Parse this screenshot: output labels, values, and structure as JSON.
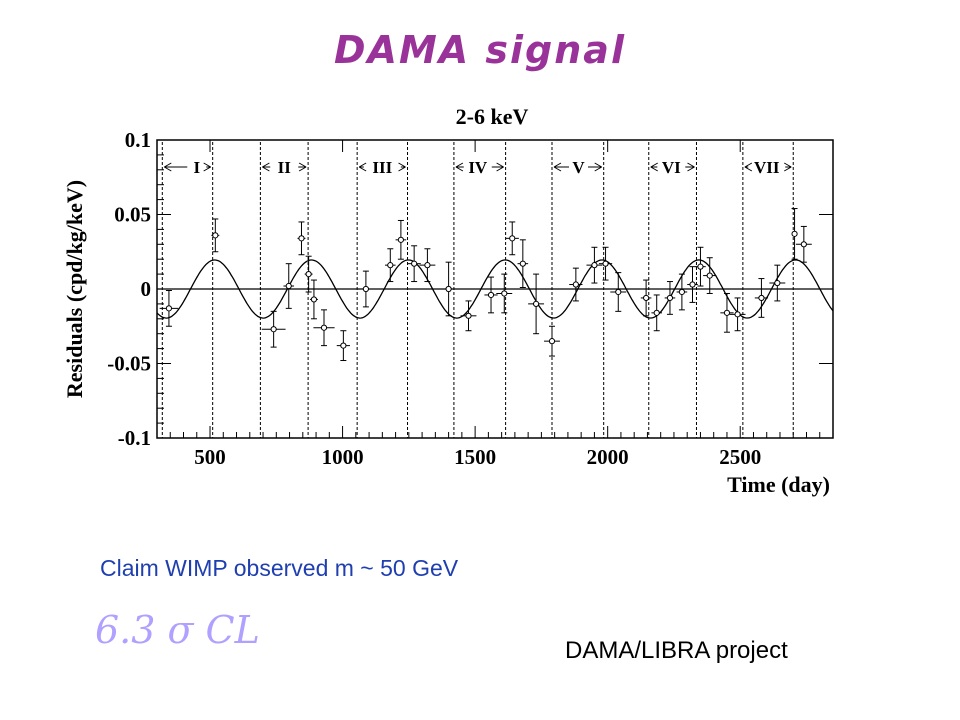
{
  "slide": {
    "title": "DAMA signal",
    "claim": "Claim WIMP observed  m ~ 50 GeV",
    "formula": "6.3 σ CL",
    "project": "DAMA/LIBRA project"
  },
  "chart_data": {
    "type": "scatter",
    "title": "2-6 keV",
    "xlabel": "Time (day)",
    "ylabel": "Residuals (cpd/kg/keV)",
    "xlim": [
      300,
      2850
    ],
    "ylim": [
      -0.1,
      0.1
    ],
    "xticks": [
      500,
      1000,
      1500,
      2000,
      2500
    ],
    "yticks": [
      -0.1,
      -0.05,
      0,
      0.05,
      0.1
    ],
    "ytick_labels": [
      "-0.1",
      "-0.05",
      "0",
      "0.05",
      "0.1"
    ],
    "grid": false,
    "cycle_lines": [
      320,
      510,
      690,
      870,
      1055,
      1245,
      1420,
      1615,
      1790,
      1985,
      2155,
      2335,
      2510,
      2700
    ],
    "cycles": [
      {
        "label": "I",
        "x": 450
      },
      {
        "label": "II",
        "x": 780
      },
      {
        "label": "III",
        "x": 1150
      },
      {
        "label": "IV",
        "x": 1510
      },
      {
        "label": "V",
        "x": 1890
      },
      {
        "label": "VI",
        "x": 2240
      },
      {
        "label": "VII",
        "x": 2600
      }
    ],
    "fit": {
      "amplitude": 0.0195,
      "period": 365.25,
      "phase_day": 152.5
    },
    "points": [
      {
        "x": 345,
        "y": -0.013,
        "xerr": 35,
        "yerr": 0.012
      },
      {
        "x": 520,
        "y": 0.036,
        "xerr": 15,
        "yerr": 0.011
      },
      {
        "x": 740,
        "y": -0.027,
        "xerr": 45,
        "yerr": 0.012
      },
      {
        "x": 797,
        "y": 0.002,
        "xerr": 20,
        "yerr": 0.015
      },
      {
        "x": 845,
        "y": 0.034,
        "xerr": 15,
        "yerr": 0.011
      },
      {
        "x": 872,
        "y": 0.01,
        "xerr": 15,
        "yerr": 0.012
      },
      {
        "x": 892,
        "y": -0.007,
        "xerr": 15,
        "yerr": 0.013
      },
      {
        "x": 930,
        "y": -0.026,
        "xerr": 40,
        "yerr": 0.012
      },
      {
        "x": 1003,
        "y": -0.038,
        "xerr": 25,
        "yerr": 0.01
      },
      {
        "x": 1088,
        "y": 0.0,
        "xerr": 25,
        "yerr": 0.012
      },
      {
        "x": 1180,
        "y": 0.016,
        "xerr": 20,
        "yerr": 0.011
      },
      {
        "x": 1220,
        "y": 0.033,
        "xerr": 20,
        "yerr": 0.013
      },
      {
        "x": 1270,
        "y": 0.017,
        "xerr": 25,
        "yerr": 0.012
      },
      {
        "x": 1320,
        "y": 0.016,
        "xerr": 30,
        "yerr": 0.011
      },
      {
        "x": 1400,
        "y": 0.0,
        "xerr": 25,
        "yerr": 0.018
      },
      {
        "x": 1475,
        "y": -0.018,
        "xerr": 30,
        "yerr": 0.01
      },
      {
        "x": 1560,
        "y": -0.004,
        "xerr": 25,
        "yerr": 0.012
      },
      {
        "x": 1610,
        "y": -0.003,
        "xerr": 30,
        "yerr": 0.013
      },
      {
        "x": 1640,
        "y": 0.034,
        "xerr": 25,
        "yerr": 0.011
      },
      {
        "x": 1680,
        "y": 0.017,
        "xerr": 20,
        "yerr": 0.016
      },
      {
        "x": 1730,
        "y": -0.01,
        "xerr": 30,
        "yerr": 0.02
      },
      {
        "x": 1790,
        "y": -0.035,
        "xerr": 30,
        "yerr": 0.01
      },
      {
        "x": 1880,
        "y": 0.003,
        "xerr": 25,
        "yerr": 0.011
      },
      {
        "x": 1950,
        "y": 0.016,
        "xerr": 30,
        "yerr": 0.012
      },
      {
        "x": 1992,
        "y": 0.017,
        "xerr": 25,
        "yerr": 0.011
      },
      {
        "x": 2040,
        "y": -0.002,
        "xerr": 30,
        "yerr": 0.013
      },
      {
        "x": 2145,
        "y": -0.006,
        "xerr": 20,
        "yerr": 0.012
      },
      {
        "x": 2185,
        "y": -0.016,
        "xerr": 20,
        "yerr": 0.012
      },
      {
        "x": 2235,
        "y": -0.006,
        "xerr": 20,
        "yerr": 0.011
      },
      {
        "x": 2280,
        "y": -0.002,
        "xerr": 20,
        "yerr": 0.012
      },
      {
        "x": 2320,
        "y": 0.003,
        "xerr": 20,
        "yerr": 0.012
      },
      {
        "x": 2350,
        "y": 0.015,
        "xerr": 20,
        "yerr": 0.013
      },
      {
        "x": 2385,
        "y": 0.009,
        "xerr": 25,
        "yerr": 0.012
      },
      {
        "x": 2450,
        "y": -0.016,
        "xerr": 25,
        "yerr": 0.013
      },
      {
        "x": 2490,
        "y": -0.017,
        "xerr": 30,
        "yerr": 0.011
      },
      {
        "x": 2580,
        "y": -0.006,
        "xerr": 25,
        "yerr": 0.013
      },
      {
        "x": 2640,
        "y": 0.004,
        "xerr": 30,
        "yerr": 0.012
      },
      {
        "x": 2705,
        "y": 0.037,
        "xerr": 10,
        "yerr": 0.017
      },
      {
        "x": 2740,
        "y": 0.03,
        "xerr": 30,
        "yerr": 0.012
      }
    ]
  }
}
